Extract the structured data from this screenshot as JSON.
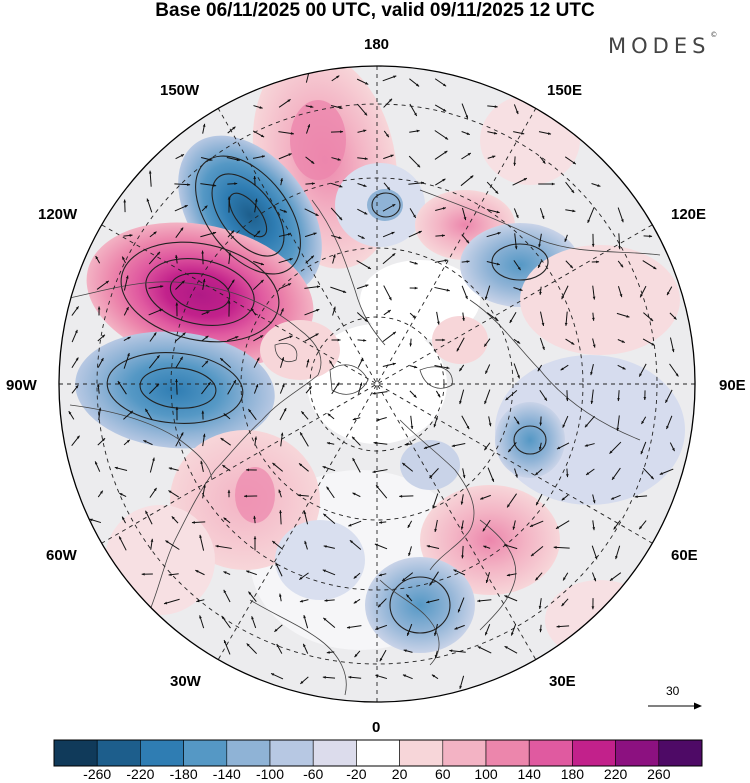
{
  "title": "Base 06/11/2025 00 UTC, valid 09/11/2025 12 UTC",
  "brand": "MODES",
  "brand_mark": "©",
  "longitude_labels": {
    "top": "180",
    "top_left": "150W",
    "top_right": "150E",
    "upper_left": "120W",
    "upper_right": "120E",
    "left": "90W",
    "right": "90E",
    "lower_left": "60W",
    "lower_right": "60E",
    "bottom_left": "30W",
    "bottom_right": "30E",
    "bottom": "0"
  },
  "reference_vector": {
    "label": "30"
  },
  "colorbar": {
    "labels": [
      "-260",
      "-220",
      "-180",
      "-140",
      "-100",
      "-60",
      "-20",
      "20",
      "60",
      "100",
      "140",
      "180",
      "220",
      "260"
    ],
    "colors": [
      "#103a5a",
      "#1d5e8c",
      "#2f7db3",
      "#5598c5",
      "#8fb3d6",
      "#b7c8e3",
      "#dcdcec",
      "#ffffff",
      "#f7d6d9",
      "#f3b3c4",
      "#ec86ac",
      "#e05aa0",
      "#c2218b",
      "#8c1180",
      "#4e0a66"
    ]
  }
}
